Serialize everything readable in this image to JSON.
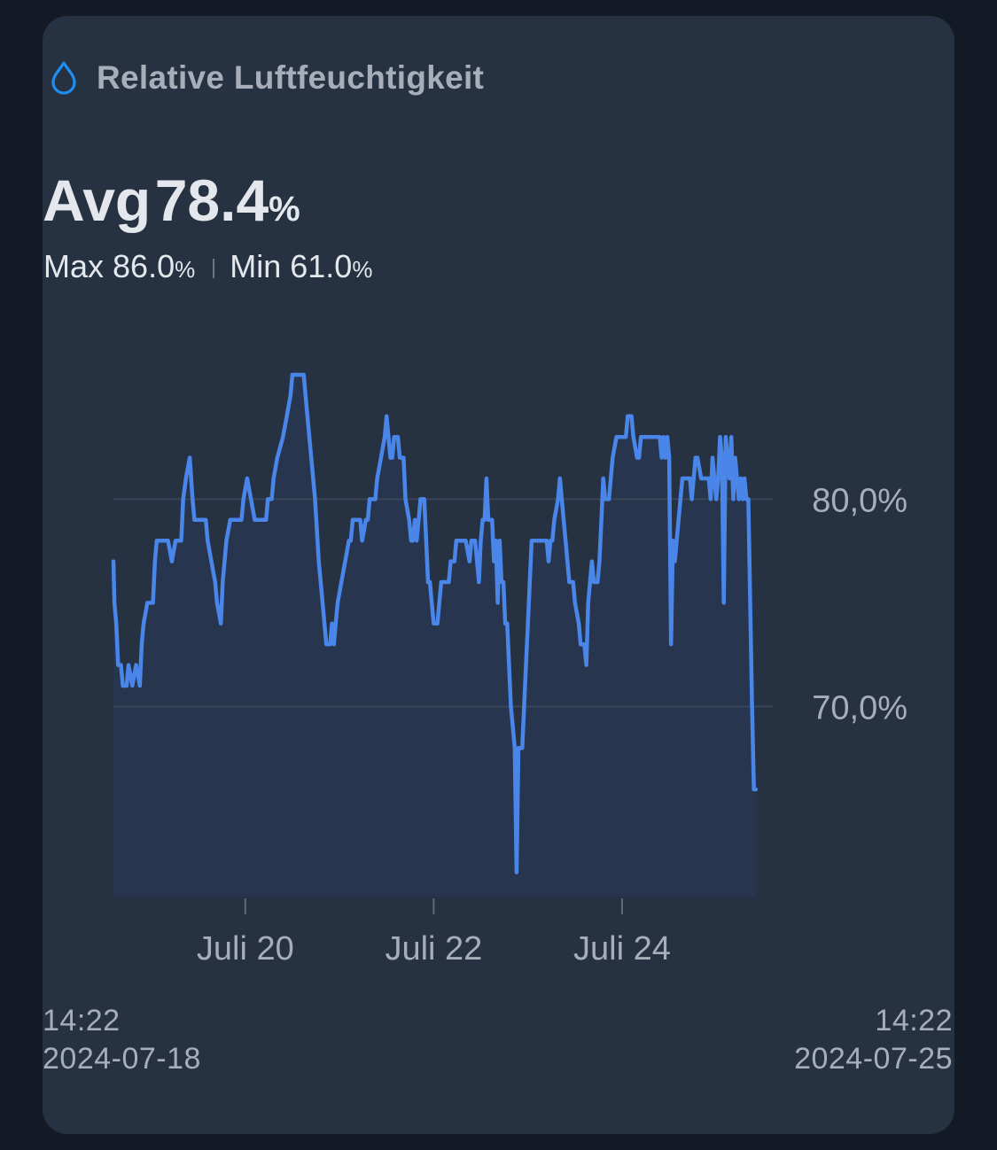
{
  "card": {
    "title": "Relative Luftfeuchtigkeit",
    "icon": "water-drop-icon",
    "accent_color": "#1f8ef0"
  },
  "summary": {
    "avg_label": "Avg",
    "avg_value": "78.4",
    "max_label": "Max",
    "max_value": "86.0",
    "min_label": "Min",
    "min_value": "61.0",
    "unit": "%"
  },
  "range": {
    "start_time": "14:22",
    "start_date": "2024-07-18",
    "end_time": "14:22",
    "end_date": "2024-07-25"
  },
  "chart_data": {
    "type": "area",
    "line_color": "#4a86ea",
    "fill_color": "#27354e",
    "x_unit": "days since 2024-07-18 14:22",
    "x_range": [
      0,
      7
    ],
    "ylim": [
      61,
      86
    ],
    "grid": "horizontal",
    "y_ticks": [
      {
        "value": 80,
        "label": "80,0%"
      },
      {
        "value": 70,
        "label": "70,0%"
      }
    ],
    "x_ticks": [
      {
        "value": 1.4,
        "label": "Juli 20"
      },
      {
        "value": 3.4,
        "label": "Juli 22"
      },
      {
        "value": 5.4,
        "label": "Juli 24"
      }
    ],
    "series": [
      {
        "values": [
          [
            0.0,
            77
          ],
          [
            0.01,
            75
          ],
          [
            0.03,
            74
          ],
          [
            0.05,
            72
          ],
          [
            0.08,
            72
          ],
          [
            0.1,
            71
          ],
          [
            0.14,
            71
          ],
          [
            0.16,
            72
          ],
          [
            0.2,
            71
          ],
          [
            0.24,
            72
          ],
          [
            0.28,
            71
          ],
          [
            0.3,
            73
          ],
          [
            0.32,
            74
          ],
          [
            0.36,
            75
          ],
          [
            0.42,
            75
          ],
          [
            0.44,
            77
          ],
          [
            0.46,
            78
          ],
          [
            0.5,
            78
          ],
          [
            0.58,
            78
          ],
          [
            0.62,
            77
          ],
          [
            0.66,
            78
          ],
          [
            0.72,
            78
          ],
          [
            0.74,
            80
          ],
          [
            0.77,
            81
          ],
          [
            0.81,
            82
          ],
          [
            0.84,
            80
          ],
          [
            0.86,
            79
          ],
          [
            0.9,
            79
          ],
          [
            0.98,
            79
          ],
          [
            1.0,
            78
          ],
          [
            1.04,
            77
          ],
          [
            1.08,
            76
          ],
          [
            1.1,
            75
          ],
          [
            1.14,
            74
          ],
          [
            1.16,
            76
          ],
          [
            1.2,
            78
          ],
          [
            1.24,
            79
          ],
          [
            1.3,
            79
          ],
          [
            1.36,
            79
          ],
          [
            1.38,
            80
          ],
          [
            1.42,
            81
          ],
          [
            1.46,
            80
          ],
          [
            1.5,
            79
          ],
          [
            1.56,
            79
          ],
          [
            1.62,
            79
          ],
          [
            1.64,
            80
          ],
          [
            1.68,
            80
          ],
          [
            1.7,
            81
          ],
          [
            1.74,
            82
          ],
          [
            1.8,
            83
          ],
          [
            1.84,
            84
          ],
          [
            1.88,
            85
          ],
          [
            1.9,
            86
          ],
          [
            2.02,
            86
          ],
          [
            2.04,
            85
          ],
          [
            2.06,
            84
          ],
          [
            2.1,
            82
          ],
          [
            2.14,
            80
          ],
          [
            2.18,
            77
          ],
          [
            2.22,
            75
          ],
          [
            2.26,
            73
          ],
          [
            2.3,
            73
          ],
          [
            2.32,
            74
          ],
          [
            2.34,
            73
          ],
          [
            2.36,
            74
          ],
          [
            2.38,
            75
          ],
          [
            2.42,
            76
          ],
          [
            2.46,
            77
          ],
          [
            2.5,
            78
          ],
          [
            2.52,
            78
          ],
          [
            2.54,
            79
          ],
          [
            2.62,
            79
          ],
          [
            2.64,
            78
          ],
          [
            2.68,
            79
          ],
          [
            2.7,
            79
          ],
          [
            2.72,
            80
          ],
          [
            2.78,
            80
          ],
          [
            2.8,
            81
          ],
          [
            2.84,
            82
          ],
          [
            2.88,
            83
          ],
          [
            2.9,
            84
          ],
          [
            2.92,
            83
          ],
          [
            2.94,
            82
          ],
          [
            2.96,
            82
          ],
          [
            2.98,
            83
          ],
          [
            3.02,
            83
          ],
          [
            3.04,
            82
          ],
          [
            3.08,
            82
          ],
          [
            3.1,
            80
          ],
          [
            3.14,
            79
          ],
          [
            3.16,
            78
          ],
          [
            3.18,
            78
          ],
          [
            3.2,
            79
          ],
          [
            3.22,
            78
          ],
          [
            3.24,
            79
          ],
          [
            3.26,
            80
          ],
          [
            3.3,
            80
          ],
          [
            3.32,
            78
          ],
          [
            3.34,
            76
          ],
          [
            3.36,
            76
          ],
          [
            3.38,
            75
          ],
          [
            3.4,
            74
          ],
          [
            3.44,
            74
          ],
          [
            3.46,
            75
          ],
          [
            3.48,
            76
          ],
          [
            3.52,
            76
          ],
          [
            3.56,
            76
          ],
          [
            3.58,
            77
          ],
          [
            3.62,
            77
          ],
          [
            3.64,
            78
          ],
          [
            3.7,
            78
          ],
          [
            3.74,
            78
          ],
          [
            3.78,
            77
          ],
          [
            3.8,
            78
          ],
          [
            3.84,
            78
          ],
          [
            3.86,
            77
          ],
          [
            3.88,
            76
          ],
          [
            3.9,
            78
          ],
          [
            3.92,
            79
          ],
          [
            3.94,
            79
          ],
          [
            3.96,
            81
          ],
          [
            3.98,
            79
          ],
          [
            4.02,
            79
          ],
          [
            4.04,
            77
          ],
          [
            4.06,
            78
          ],
          [
            4.08,
            75
          ],
          [
            4.1,
            78
          ],
          [
            4.12,
            76
          ],
          [
            4.14,
            76
          ],
          [
            4.16,
            74
          ],
          [
            4.18,
            74
          ],
          [
            4.2,
            72
          ],
          [
            4.22,
            70
          ],
          [
            4.24,
            69
          ],
          [
            4.26,
            68
          ],
          [
            4.28,
            62
          ],
          [
            4.3,
            68
          ],
          [
            4.34,
            68
          ],
          [
            4.36,
            70
          ],
          [
            4.38,
            72
          ],
          [
            4.4,
            74
          ],
          [
            4.42,
            76
          ],
          [
            4.44,
            78
          ],
          [
            4.5,
            78
          ],
          [
            4.56,
            78
          ],
          [
            4.6,
            78
          ],
          [
            4.62,
            77
          ],
          [
            4.64,
            78
          ],
          [
            4.66,
            78
          ],
          [
            4.68,
            79
          ],
          [
            4.72,
            80
          ],
          [
            4.74,
            81
          ],
          [
            4.76,
            80
          ],
          [
            4.78,
            79
          ],
          [
            4.8,
            78
          ],
          [
            4.84,
            76
          ],
          [
            4.88,
            76
          ],
          [
            4.9,
            75
          ],
          [
            4.94,
            74
          ],
          [
            4.96,
            73
          ],
          [
            5.0,
            73
          ],
          [
            5.02,
            72
          ],
          [
            5.04,
            75
          ],
          [
            5.06,
            76
          ],
          [
            5.08,
            77
          ],
          [
            5.1,
            76
          ],
          [
            5.12,
            76
          ],
          [
            5.14,
            76
          ],
          [
            5.16,
            77
          ],
          [
            5.18,
            79
          ],
          [
            5.2,
            81
          ],
          [
            5.22,
            80
          ],
          [
            5.24,
            80
          ],
          [
            5.26,
            80
          ],
          [
            5.28,
            81
          ],
          [
            5.3,
            82
          ],
          [
            5.34,
            83
          ],
          [
            5.4,
            83
          ],
          [
            5.44,
            83
          ],
          [
            5.46,
            84
          ],
          [
            5.5,
            84
          ],
          [
            5.52,
            83
          ],
          [
            5.56,
            82
          ],
          [
            5.58,
            82
          ],
          [
            5.6,
            83
          ],
          [
            5.66,
            83
          ],
          [
            5.72,
            83
          ],
          [
            5.74,
            83
          ],
          [
            5.8,
            83
          ],
          [
            5.82,
            82
          ],
          [
            5.84,
            83
          ],
          [
            5.86,
            82
          ],
          [
            5.88,
            83
          ],
          [
            5.9,
            82
          ],
          [
            5.92,
            73
          ],
          [
            5.94,
            78
          ],
          [
            5.96,
            77
          ],
          [
            5.98,
            78
          ],
          [
            6.0,
            79
          ],
          [
            6.02,
            80
          ],
          [
            6.04,
            81
          ],
          [
            6.08,
            81
          ],
          [
            6.12,
            81
          ],
          [
            6.14,
            80
          ],
          [
            6.16,
            81
          ],
          [
            6.18,
            82
          ],
          [
            6.2,
            82
          ],
          [
            6.24,
            81
          ],
          [
            6.28,
            81
          ],
          [
            6.32,
            81
          ],
          [
            6.34,
            80
          ],
          [
            6.36,
            82
          ],
          [
            6.38,
            81
          ],
          [
            6.4,
            80
          ],
          [
            6.42,
            81
          ],
          [
            6.44,
            83
          ],
          [
            6.46,
            82
          ],
          [
            6.48,
            75
          ],
          [
            6.5,
            83
          ],
          [
            6.52,
            82
          ],
          [
            6.54,
            81
          ],
          [
            6.56,
            83
          ],
          [
            6.58,
            80
          ],
          [
            6.6,
            82
          ],
          [
            6.62,
            81
          ],
          [
            6.64,
            80
          ],
          [
            6.66,
            81
          ],
          [
            6.68,
            80
          ],
          [
            6.7,
            81
          ],
          [
            6.72,
            80
          ],
          [
            6.74,
            80
          ],
          [
            6.76,
            75
          ],
          [
            6.78,
            70
          ],
          [
            6.8,
            66
          ],
          [
            6.82,
            66
          ]
        ]
      }
    ]
  }
}
